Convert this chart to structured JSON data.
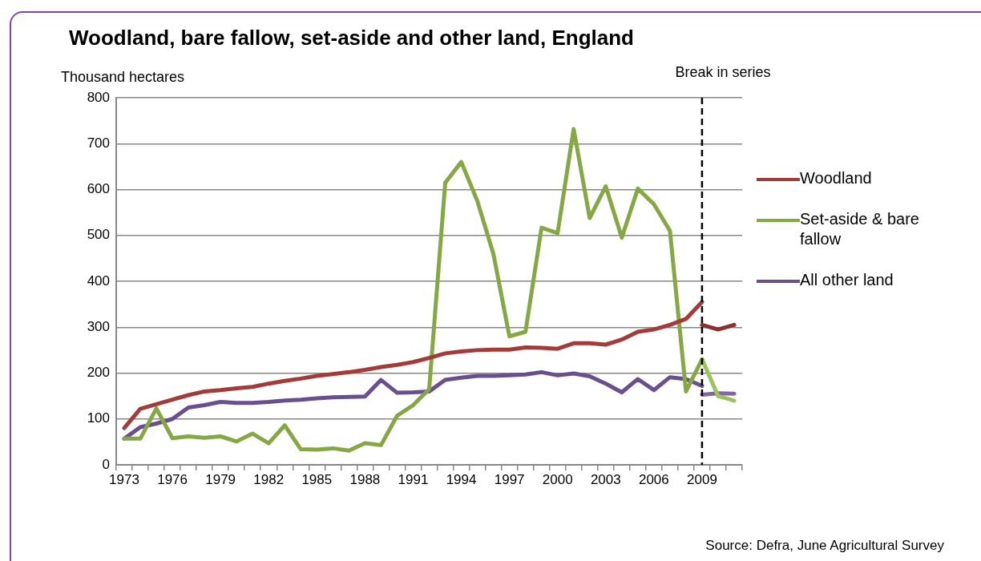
{
  "chart_data": {
    "type": "line",
    "title": "Woodland, bare fallow, set-aside and other land, England",
    "ylabel": "Thousand hectares",
    "categories": [
      "1973",
      null,
      null,
      "1976",
      null,
      null,
      "1979",
      null,
      null,
      "1982",
      null,
      null,
      "1985",
      null,
      null,
      "1988",
      null,
      null,
      "1991",
      null,
      null,
      "1994",
      null,
      null,
      "1997",
      null,
      null,
      "2000",
      null,
      null,
      "2003",
      null,
      null,
      "2006",
      null,
      null,
      "2009",
      null,
      null
    ],
    "series": [
      {
        "name": "Woodland",
        "color": "#a33b3b",
        "values": [
          80,
          122,
          132,
          142,
          152,
          160,
          163,
          167,
          170,
          177,
          183,
          188,
          194,
          198,
          202,
          207,
          213,
          218,
          224,
          233,
          243,
          247,
          250,
          251,
          251,
          256,
          255,
          253,
          265,
          265,
          262,
          273,
          290,
          295,
          305,
          318,
          355,
          null,
          null
        ]
      },
      {
        "name": "Set-aside & bare fallow",
        "color": "#86a844",
        "values": [
          57,
          57,
          123,
          58,
          62,
          59,
          62,
          51,
          68,
          47,
          86,
          34,
          33,
          36,
          31,
          47,
          43,
          107,
          130,
          165,
          615,
          660,
          575,
          460,
          280,
          290,
          517,
          505,
          732,
          538,
          607,
          495,
          602,
          568,
          510,
          160,
          230,
          null,
          null
        ]
      },
      {
        "name": "All other land",
        "color": "#6a4f8f",
        "values": [
          57,
          82,
          90,
          100,
          125,
          130,
          137,
          135,
          135,
          137,
          140,
          142,
          145,
          147,
          148,
          149,
          185,
          157,
          158,
          160,
          185,
          190,
          194,
          194,
          195,
          197,
          202,
          195,
          199,
          193,
          177,
          158,
          187,
          163,
          191,
          187,
          172,
          null,
          null
        ]
      },
      {
        "color": "#8c2f2f",
        "values": [
          null,
          null,
          null,
          null,
          null,
          null,
          null,
          null,
          null,
          null,
          null,
          null,
          null,
          null,
          null,
          null,
          null,
          null,
          null,
          null,
          null,
          null,
          null,
          null,
          null,
          null,
          null,
          null,
          null,
          null,
          null,
          null,
          null,
          null,
          null,
          null,
          305,
          295,
          305
        ]
      },
      {
        "color": "#9cc45c",
        "values": [
          null,
          null,
          null,
          null,
          null,
          null,
          null,
          null,
          null,
          null,
          null,
          null,
          null,
          null,
          null,
          null,
          null,
          null,
          null,
          null,
          null,
          null,
          null,
          null,
          null,
          null,
          null,
          null,
          null,
          null,
          null,
          null,
          null,
          null,
          null,
          null,
          230,
          150,
          140
        ]
      },
      {
        "color": "#8466a8",
        "values": [
          null,
          null,
          null,
          null,
          null,
          null,
          null,
          null,
          null,
          null,
          null,
          null,
          null,
          null,
          null,
          null,
          null,
          null,
          null,
          null,
          null,
          null,
          null,
          null,
          null,
          null,
          null,
          null,
          null,
          null,
          null,
          null,
          null,
          null,
          null,
          null,
          153,
          156,
          155
        ]
      }
    ],
    "ylim": [
      0,
      800
    ],
    "yticks": [
      0,
      100,
      200,
      300,
      400,
      500,
      600,
      700,
      800
    ],
    "grid": "y",
    "legend": "right",
    "marker": "none",
    "line_style": "solid",
    "ref_lines": [
      {
        "axis": "x",
        "value": "2009",
        "label": "Break in series",
        "color": "#000000",
        "line_style": "dashed"
      }
    ],
    "annotations": [
      "Source: Defra, June Agricultural Survey"
    ]
  }
}
